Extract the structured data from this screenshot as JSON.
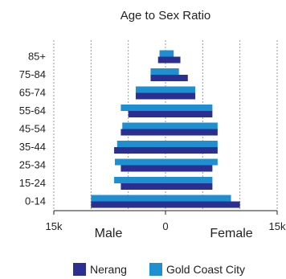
{
  "chart_data": {
    "type": "bar",
    "orientation": "horizontal-diverging",
    "title": "Age to Sex Ratio",
    "categories": [
      "0-14",
      "15-24",
      "25-34",
      "35-44",
      "45-54",
      "55-64",
      "65-74",
      "75-84",
      "85+"
    ],
    "series": [
      {
        "name": "Nerang",
        "color": "#2b2f8f",
        "male": [
          10000,
          6000,
          6000,
          6900,
          6000,
          5000,
          4000,
          2000,
          1000
        ],
        "female": [
          10000,
          6300,
          6300,
          7000,
          7000,
          6300,
          4000,
          3000,
          2000
        ]
      },
      {
        "name": "Gold Coast City",
        "color": "#1e8fd0",
        "male": [
          10000,
          6900,
          6800,
          6500,
          5800,
          6000,
          4000,
          2000,
          800
        ],
        "female": [
          8800,
          6300,
          7000,
          7000,
          7000,
          6300,
          4000,
          1800,
          1100
        ]
      }
    ],
    "xlim": [
      -15000,
      15000
    ],
    "x_ticks": [
      "15k",
      "0",
      "15k"
    ],
    "side_labels": {
      "left": "Male",
      "right": "Female"
    },
    "grid": "vertical dashed"
  }
}
